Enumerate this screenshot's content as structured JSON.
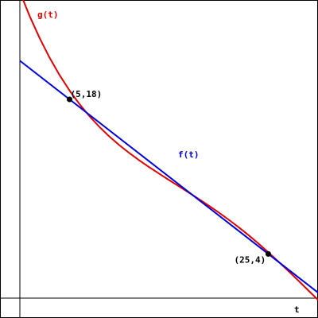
{
  "chart_data": {
    "type": "line",
    "xlabel": "t",
    "ylabel": "",
    "xlim": [
      0,
      30
    ],
    "ylim": [
      0,
      27
    ],
    "grid": false,
    "legend": "none",
    "series": [
      {
        "name": "g(t)",
        "color": "#dd0000",
        "x": [
          0,
          1,
          2,
          3,
          4,
          5,
          6,
          7,
          8,
          9,
          10,
          11,
          12,
          13,
          14,
          15,
          16,
          17,
          18,
          19,
          20,
          21,
          22,
          23,
          24,
          25,
          26,
          27,
          28,
          29,
          30
        ],
        "y": [
          27.73,
          25.51,
          23.53,
          21.76,
          20.19,
          18.8,
          17.57,
          16.48,
          15.51,
          14.64,
          13.86,
          13.15,
          12.49,
          11.87,
          11.28,
          10.7,
          10.13,
          9.56,
          8.98,
          8.38,
          7.76,
          7.11,
          6.43,
          5.71,
          4.95,
          4.15,
          3.32,
          2.47,
          1.61,
          0.72,
          -0.16
        ]
      },
      {
        "name": "f(t)",
        "color": "#0000dd",
        "x": [
          0,
          30
        ],
        "y": [
          21.5,
          0.5
        ]
      }
    ],
    "points": [
      {
        "x": 5,
        "y": 18,
        "label": "(5,18)"
      },
      {
        "x": 25,
        "y": 4,
        "label": "(25,4)"
      }
    ]
  }
}
